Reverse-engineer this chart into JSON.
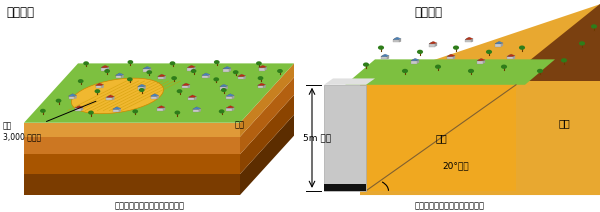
{
  "title_left": "谷埋め型",
  "title_right": "腹付け型",
  "caption_left": "「谷埋め型大規模盛土造成地」",
  "caption_right": "「腹付け型大規模盛土造成地」",
  "label_mori_left": "盛土",
  "label_mori_left2": "3,000 ㎡以上",
  "label_chiyama_left": "地山",
  "label_5m": "5m 以上",
  "label_mori_right": "盛土",
  "label_chiyama_right": "地山",
  "label_20deg": "20°以上",
  "bg_color": "#ffffff"
}
